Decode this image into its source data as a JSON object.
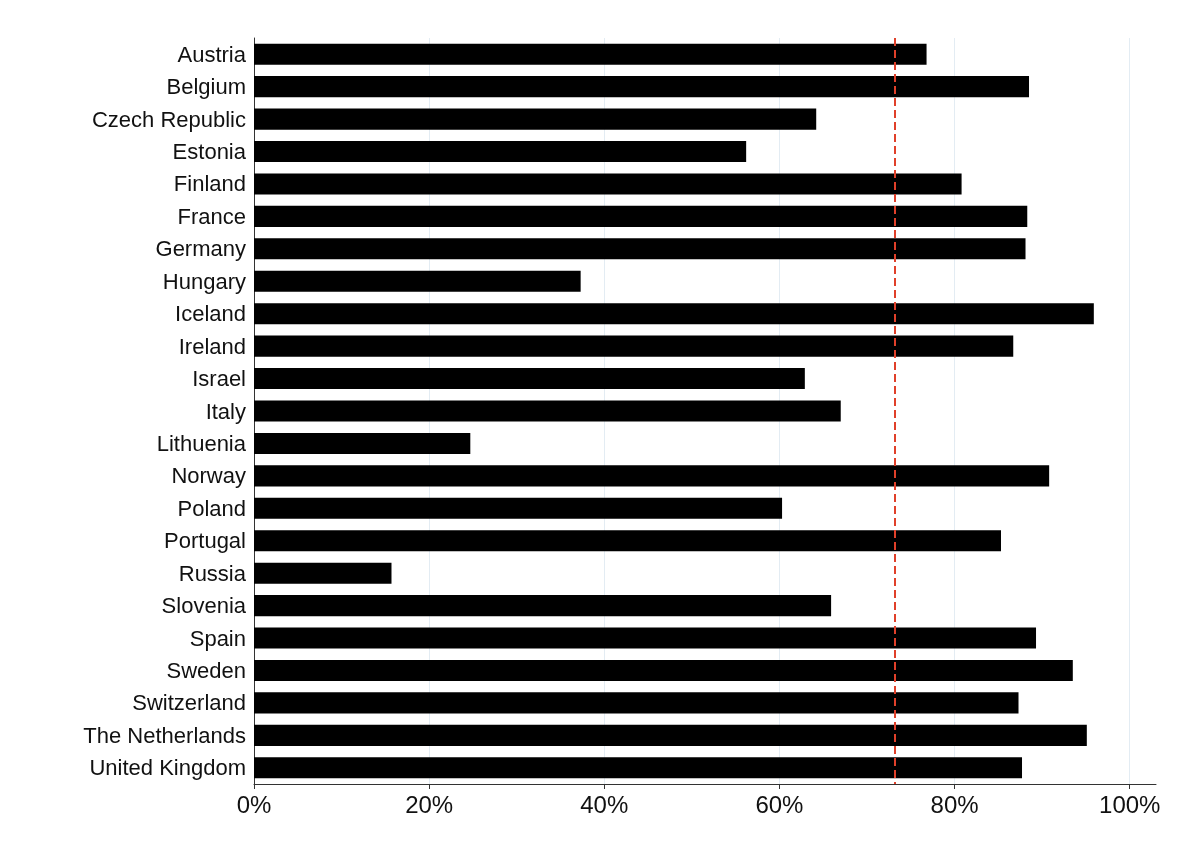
{
  "chart_data": {
    "type": "bar",
    "orientation": "horizontal",
    "categories": [
      "Austria",
      "Belgium",
      "Czech Republic",
      "Estonia",
      "Finland",
      "France",
      "Germany",
      "Hungary",
      "Iceland",
      "Ireland",
      "Israel",
      "Italy",
      "Lithuenia",
      "Norway",
      "Poland",
      "Portugal",
      "Russia",
      "Slovenia",
      "Spain",
      "Sweden",
      "Switzerland",
      "The Netherlands",
      "United Kingdom"
    ],
    "values": [
      76.8,
      88.5,
      64.2,
      56.2,
      80.8,
      88.3,
      88.1,
      37.3,
      95.9,
      86.7,
      62.9,
      67.0,
      24.7,
      90.8,
      60.3,
      85.3,
      15.7,
      65.9,
      89.3,
      93.5,
      87.3,
      95.1,
      87.7
    ],
    "color": "#000000",
    "xlim": [
      0,
      103
    ],
    "xticks": [
      {
        "value": 0,
        "label": "0%"
      },
      {
        "value": 20,
        "label": "20%"
      },
      {
        "value": 40,
        "label": "40%"
      },
      {
        "value": 60,
        "label": "60%"
      },
      {
        "value": 80,
        "label": "80%"
      },
      {
        "value": 100,
        "label": "100%"
      }
    ],
    "grid": "x",
    "ref_lines": [
      {
        "axis": "x",
        "value": 73.2,
        "color": "#e0402a",
        "line_style": "dashed"
      }
    ]
  }
}
